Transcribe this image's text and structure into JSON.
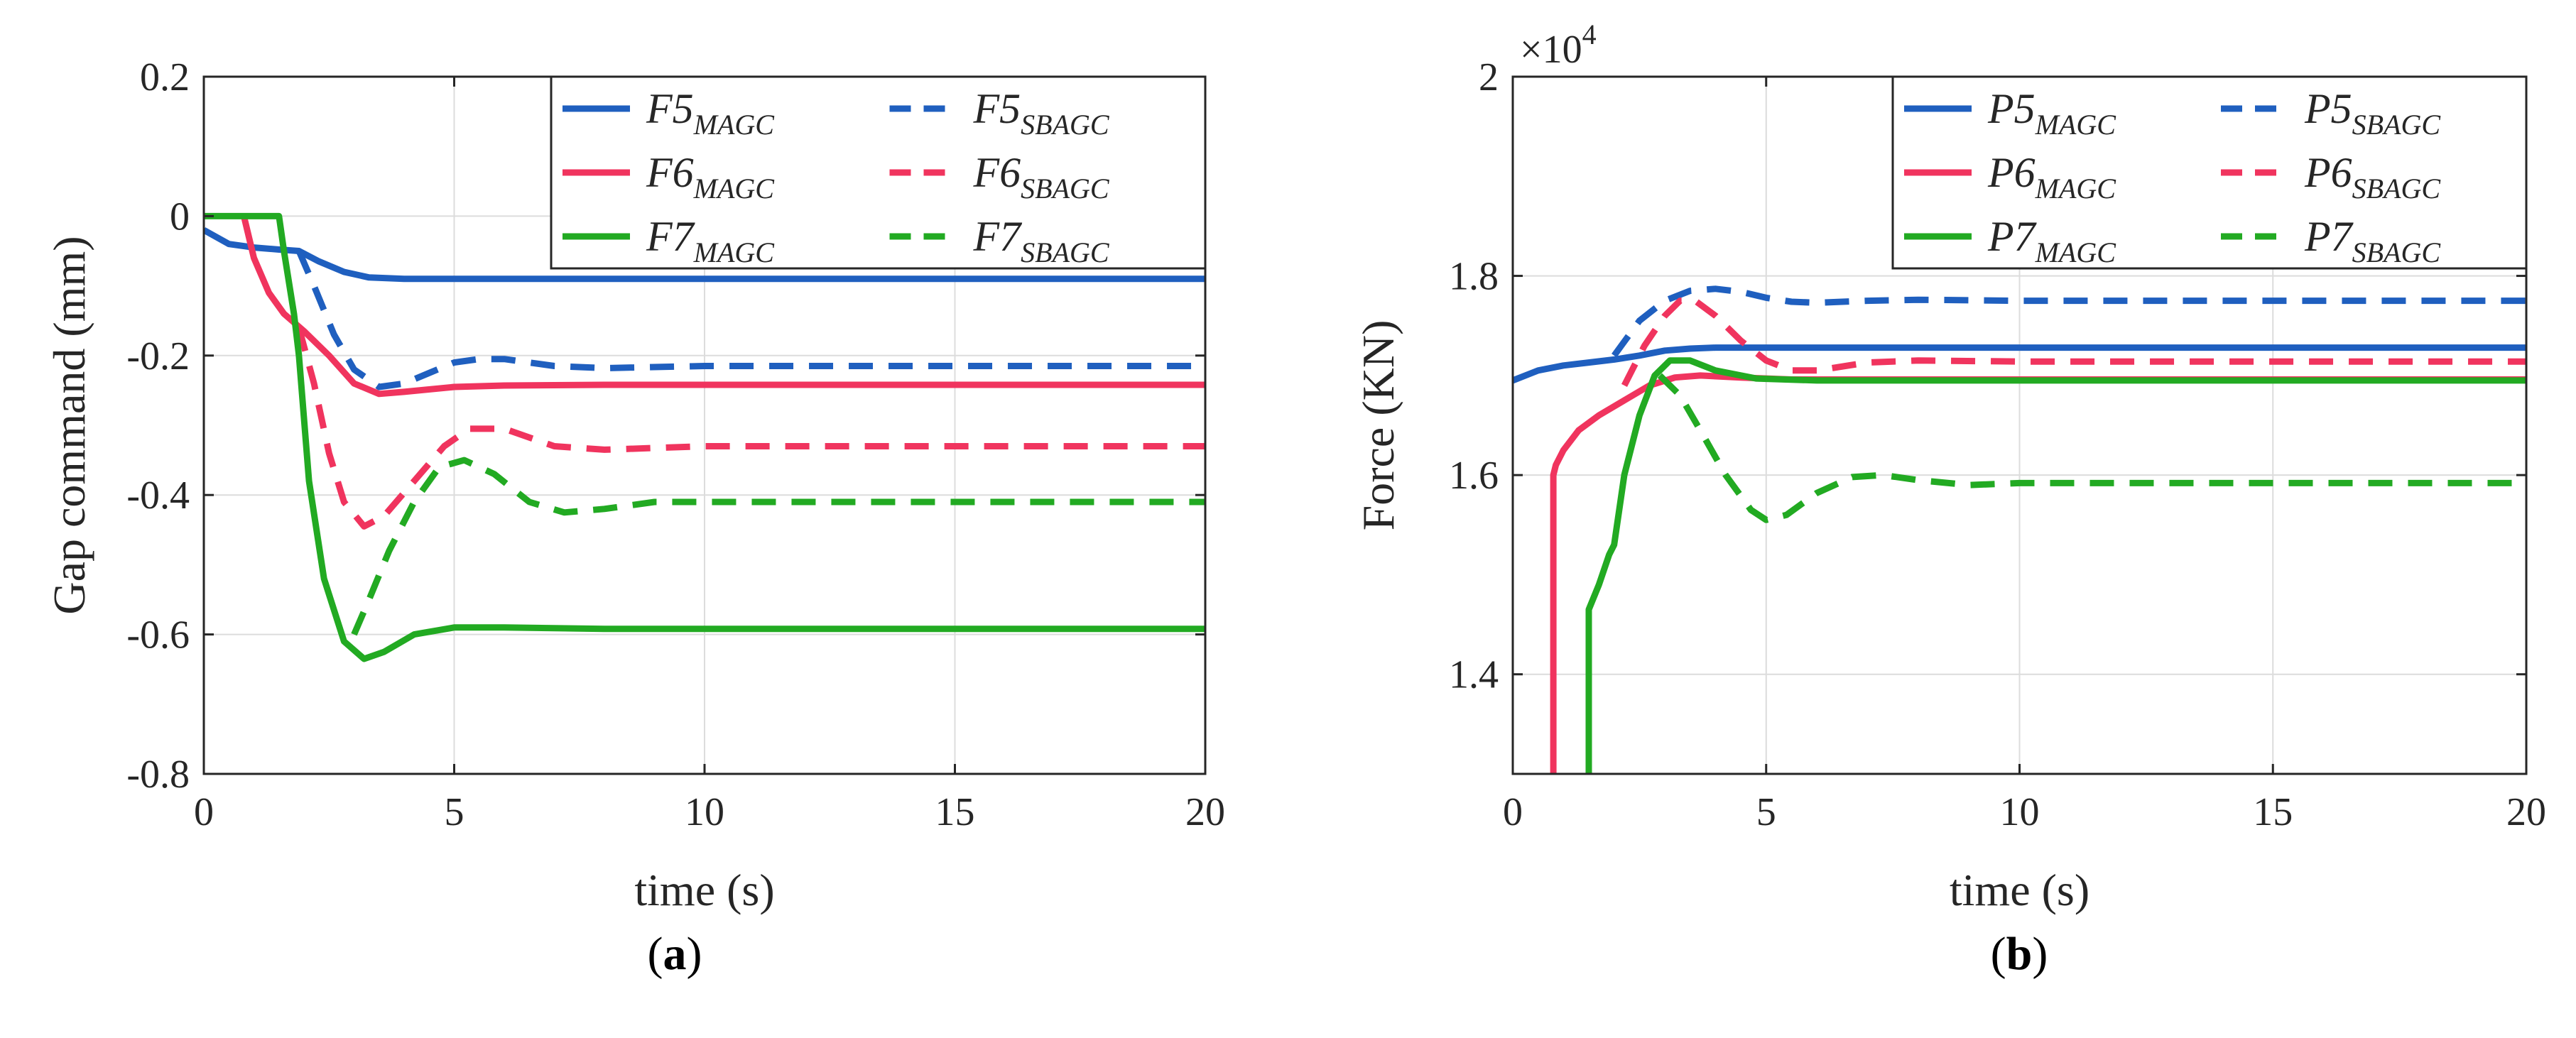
{
  "chart_data": [
    {
      "id": "a",
      "type": "line",
      "caption": "a",
      "xlabel": "time (s)",
      "ylabel": "Gap command (mm)",
      "xlim": [
        0,
        20
      ],
      "ylim": [
        -0.8,
        0.2
      ],
      "xticks": [
        0,
        5,
        10,
        15,
        20
      ],
      "xtick_labels": [
        "0",
        "5",
        "10",
        "15",
        "20"
      ],
      "yticks": [
        -0.8,
        -0.6,
        -0.4,
        -0.2,
        0,
        0.2
      ],
      "ytick_labels": [
        "-0.8",
        "-0.6",
        "-0.4",
        "-0.2",
        "0",
        "0.2"
      ],
      "grid": true,
      "legend_position": "top-right",
      "series": [
        {
          "name": "F5",
          "sub": "MAGC",
          "color": "#1f5fbf",
          "dash": false,
          "x": [
            0,
            0.5,
            1,
            1.5,
            1.9,
            2.3,
            2.8,
            3.3,
            4,
            5,
            6,
            8,
            10,
            20
          ],
          "y": [
            -0.02,
            -0.04,
            -0.045,
            -0.048,
            -0.05,
            -0.065,
            -0.08,
            -0.088,
            -0.09,
            -0.09,
            -0.09,
            -0.09,
            -0.09,
            -0.09
          ]
        },
        {
          "name": "F5",
          "sub": "SBAGC",
          "color": "#1f5fbf",
          "dash": true,
          "x": [
            1.9,
            2.2,
            2.6,
            3.0,
            3.5,
            4.0,
            4.5,
            5,
            5.5,
            6,
            7,
            8,
            10,
            20
          ],
          "y": [
            -0.05,
            -0.1,
            -0.17,
            -0.22,
            -0.245,
            -0.24,
            -0.225,
            -0.21,
            -0.205,
            -0.205,
            -0.215,
            -0.218,
            -0.215,
            -0.215
          ]
        },
        {
          "name": "F6",
          "sub": "MAGC",
          "color": "#f0345e",
          "dash": false,
          "x": [
            0.8,
            1.0,
            1.3,
            1.6,
            2.0,
            2.5,
            3.0,
            3.5,
            4,
            5,
            6,
            8,
            10,
            20
          ],
          "y": [
            0,
            -0.06,
            -0.11,
            -0.14,
            -0.165,
            -0.2,
            -0.24,
            -0.255,
            -0.252,
            -0.245,
            -0.243,
            -0.242,
            -0.242,
            -0.242
          ]
        },
        {
          "name": "F6",
          "sub": "SBAGC",
          "color": "#f0345e",
          "dash": true,
          "x": [
            1.9,
            2.2,
            2.5,
            2.8,
            3.2,
            3.6,
            4.2,
            4.8,
            5.3,
            6,
            7,
            8,
            10,
            20
          ],
          "y": [
            -0.16,
            -0.24,
            -0.34,
            -0.41,
            -0.445,
            -0.43,
            -0.38,
            -0.33,
            -0.305,
            -0.305,
            -0.33,
            -0.335,
            -0.33,
            -0.33
          ]
        },
        {
          "name": "F7",
          "sub": "MAGC",
          "color": "#22aa22",
          "dash": false,
          "x": [
            0,
            1.5,
            1.6,
            1.8,
            1.9,
            2.1,
            2.4,
            2.8,
            3.2,
            3.6,
            4.2,
            5,
            6,
            8,
            10,
            20
          ],
          "y": [
            0,
            0,
            -0.05,
            -0.14,
            -0.2,
            -0.38,
            -0.52,
            -0.61,
            -0.635,
            -0.625,
            -0.6,
            -0.59,
            -0.59,
            -0.592,
            -0.592,
            -0.592
          ]
        },
        {
          "name": "F7",
          "sub": "SBAGC",
          "color": "#22aa22",
          "dash": true,
          "x": [
            3.0,
            3.3,
            3.7,
            4.2,
            4.7,
            5.2,
            5.8,
            6.5,
            7.2,
            8,
            9,
            10,
            20
          ],
          "y": [
            -0.6,
            -0.55,
            -0.48,
            -0.41,
            -0.36,
            -0.35,
            -0.37,
            -0.41,
            -0.425,
            -0.42,
            -0.41,
            -0.41,
            -0.41
          ]
        }
      ]
    },
    {
      "id": "b",
      "type": "line",
      "caption": "b",
      "xlabel": "time (s)",
      "ylabel": "Force (KN)",
      "exponent_base": "×10",
      "exponent_power": "4",
      "xlim": [
        0,
        20
      ],
      "ylim": [
        1.3,
        2.0
      ],
      "xticks": [
        0,
        5,
        10,
        15,
        20
      ],
      "xtick_labels": [
        "0",
        "5",
        "10",
        "15",
        "20"
      ],
      "yticks": [
        1.4,
        1.6,
        1.8,
        2.0
      ],
      "ytick_labels": [
        "1.4",
        "1.6",
        "1.8",
        "2"
      ],
      "grid": true,
      "legend_position": "top-right",
      "series": [
        {
          "name": "P5",
          "sub": "MAGC",
          "color": "#1f5fbf",
          "dash": false,
          "x": [
            0,
            0.5,
            1,
            1.5,
            2,
            2.5,
            3,
            3.5,
            4,
            5,
            6,
            8,
            10,
            20
          ],
          "y": [
            1.695,
            1.705,
            1.71,
            1.713,
            1.716,
            1.72,
            1.725,
            1.727,
            1.728,
            1.728,
            1.728,
            1.728,
            1.728,
            1.728
          ]
        },
        {
          "name": "P5",
          "sub": "SBAGC",
          "color": "#1f5fbf",
          "dash": true,
          "x": [
            2.0,
            2.5,
            3.0,
            3.5,
            4.0,
            4.5,
            5,
            5.5,
            6,
            7,
            8,
            10,
            20
          ],
          "y": [
            1.72,
            1.755,
            1.775,
            1.785,
            1.787,
            1.784,
            1.778,
            1.774,
            1.773,
            1.775,
            1.776,
            1.775,
            1.775
          ]
        },
        {
          "name": "P6",
          "sub": "MAGC",
          "color": "#f0345e",
          "dash": false,
          "x": [
            0.8,
            0.8,
            0.85,
            1.0,
            1.3,
            1.7,
            2.2,
            2.7,
            3.2,
            3.7,
            4.5,
            5.5,
            7,
            10,
            20
          ],
          "y": [
            1.3,
            1.6,
            1.61,
            1.625,
            1.645,
            1.66,
            1.675,
            1.69,
            1.698,
            1.7,
            1.698,
            1.696,
            1.696,
            1.696,
            1.696
          ]
        },
        {
          "name": "P6",
          "sub": "SBAGC",
          "color": "#f0345e",
          "dash": true,
          "x": [
            2.2,
            2.6,
            3.0,
            3.3,
            3.6,
            4.0,
            4.5,
            5.0,
            5.5,
            6,
            7,
            8,
            10,
            20
          ],
          "y": [
            1.69,
            1.73,
            1.76,
            1.775,
            1.775,
            1.76,
            1.735,
            1.715,
            1.705,
            1.705,
            1.713,
            1.715,
            1.714,
            1.714
          ]
        },
        {
          "name": "P7",
          "sub": "MAGC",
          "color": "#22aa22",
          "dash": false,
          "x": [
            1.5,
            1.5,
            1.7,
            1.9,
            2.0,
            2.2,
            2.5,
            2.8,
            3.1,
            3.5,
            4.0,
            4.8,
            6,
            8,
            10,
            20
          ],
          "y": [
            1.3,
            1.465,
            1.49,
            1.52,
            1.53,
            1.6,
            1.66,
            1.7,
            1.715,
            1.715,
            1.705,
            1.697,
            1.695,
            1.695,
            1.695,
            1.695
          ]
        },
        {
          "name": "P7",
          "sub": "SBAGC",
          "color": "#22aa22",
          "dash": true,
          "x": [
            2.9,
            3.3,
            3.7,
            4.2,
            4.7,
            5.0,
            5.4,
            6.0,
            6.7,
            7.3,
            8,
            9,
            10,
            20
          ],
          "y": [
            1.7,
            1.68,
            1.645,
            1.6,
            1.565,
            1.555,
            1.56,
            1.582,
            1.598,
            1.6,
            1.595,
            1.59,
            1.592,
            1.592
          ]
        }
      ]
    }
  ]
}
